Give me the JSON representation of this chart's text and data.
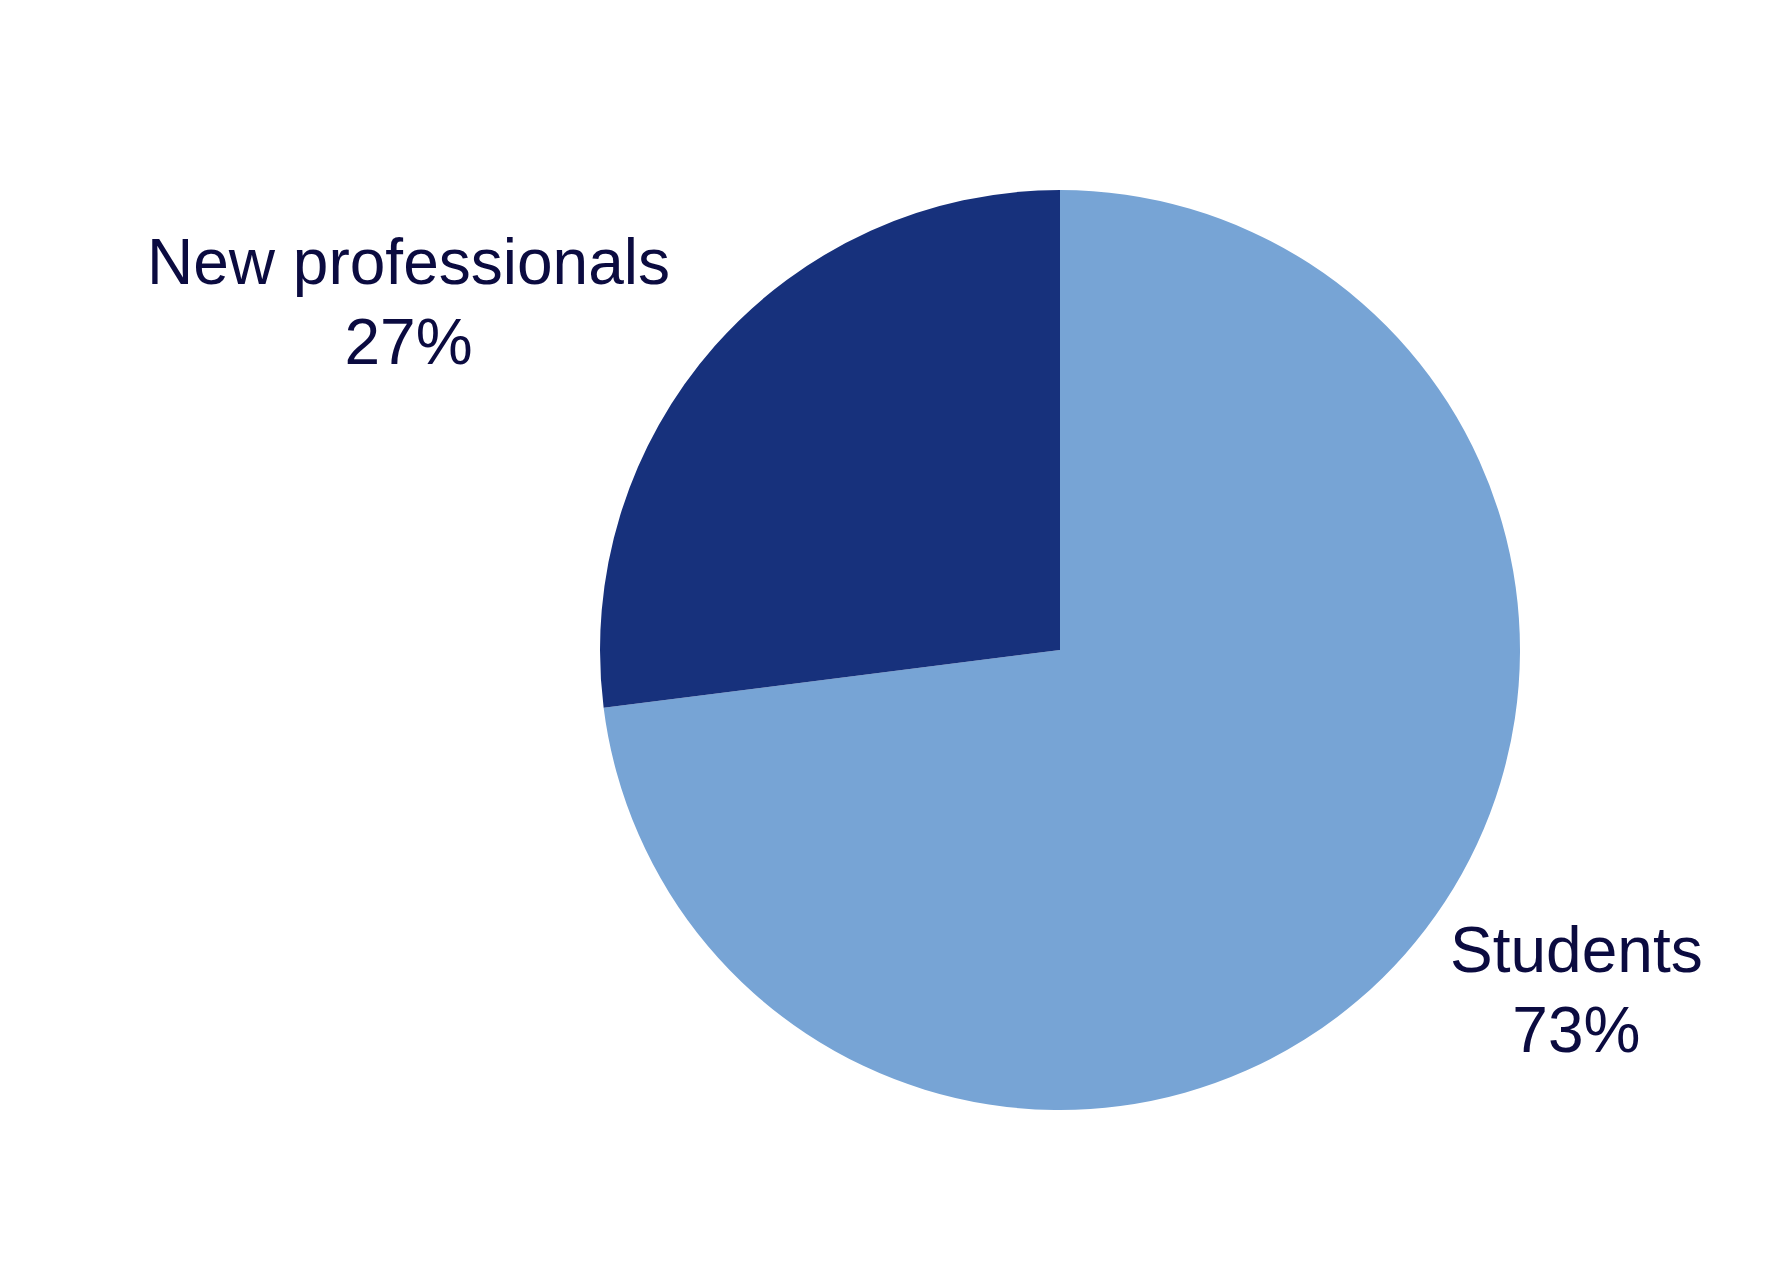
{
  "chart_data": {
    "type": "pie",
    "categories": [
      "Students",
      "New professionals"
    ],
    "values": [
      73,
      27
    ],
    "value_labels": [
      "73%",
      "27%"
    ],
    "colors": [
      "#77a4d5",
      "#17317c"
    ],
    "legend": false
  }
}
